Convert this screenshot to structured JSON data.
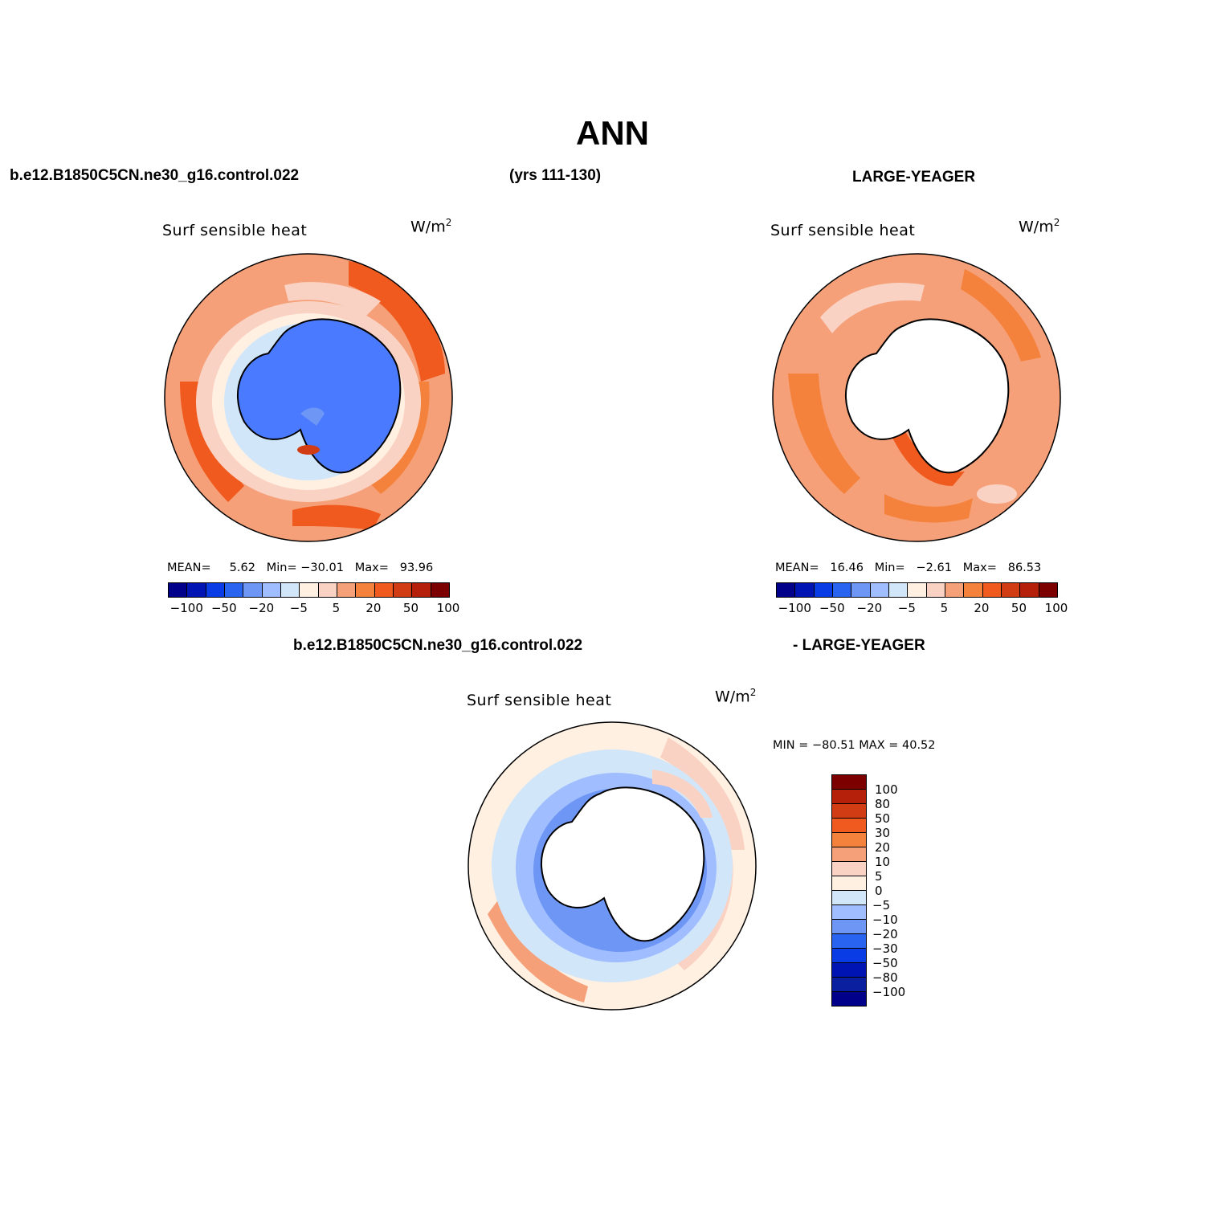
{
  "title": "ANN",
  "header": {
    "case_left": "b.e12.B1850C5CN.ne30_g16.control.022",
    "years": "(yrs 111-130)",
    "case_right": "LARGE-YEAGER",
    "diff_left": "b.e12.B1850C5CN.ne30_g16.control.022",
    "diff_right": "- LARGE-YEAGER"
  },
  "panels": {
    "p1": {
      "title": "Surf sensible heat",
      "units": "W/m",
      "units_exp": "2",
      "mean_label": "MEAN=",
      "mean": "5.62",
      "min_label": "Min=",
      "min": "−30.01",
      "max_label": "Max=",
      "max": "93.96"
    },
    "p2": {
      "title": "Surf sensible heat",
      "units": "W/m",
      "units_exp": "2",
      "mean_label": "MEAN=",
      "mean": "16.46",
      "min_label": "Min=",
      "min": "−2.61",
      "max_label": "Max=",
      "max": "86.53"
    },
    "p3": {
      "title": "Surf sensible heat",
      "units": "W/m",
      "units_exp": "2",
      "minmax": "MIN = −80.51  MAX =   40.52"
    }
  },
  "colorbar_h": {
    "colors": [
      "#00008a",
      "#0014b4",
      "#0a3ce6",
      "#2864f0",
      "#6e96f5",
      "#a0beff",
      "#d2e6fa",
      "#fff0e1",
      "#fad2c3",
      "#f5a078",
      "#f5823c",
      "#f05a1e",
      "#d23c14",
      "#b4200a",
      "#7d0000"
    ],
    "labels": [
      "−100",
      "−50",
      "−20",
      "−5",
      "5",
      "20",
      "50",
      "100"
    ]
  },
  "colorbar_v": {
    "colors": [
      "#7d0000",
      "#b4200a",
      "#d23c14",
      "#f05a1e",
      "#f5823c",
      "#f5a078",
      "#fad2c3",
      "#fff0e1",
      "#d2e6fa",
      "#a0beff",
      "#6e96f5",
      "#2864f0",
      "#0a3ce6",
      "#0014b4",
      "#0a1ea0",
      "#00008a"
    ],
    "labels": [
      "100",
      "80",
      "50",
      "30",
      "20",
      "10",
      "5",
      "0",
      "−5",
      "−10",
      "−20",
      "−30",
      "−50",
      "−80",
      "−100"
    ]
  }
}
